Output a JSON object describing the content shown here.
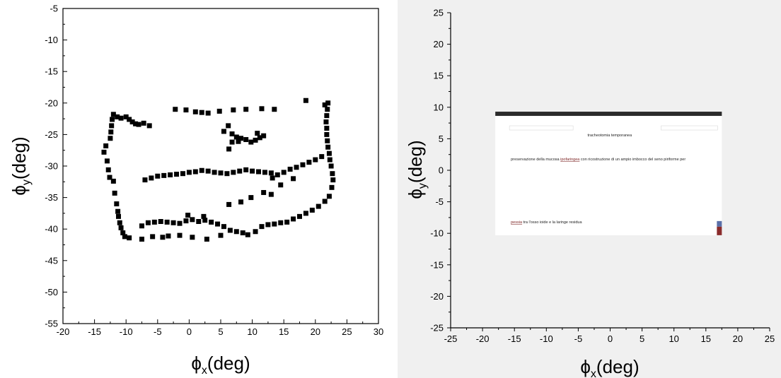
{
  "chart_data": [
    {
      "type": "scatter",
      "xlabel_base": "ϕ",
      "xlabel_sub": "x",
      "xlabel_unit": "(deg)",
      "ylabel_base": "ϕ",
      "ylabel_sub": "y",
      "ylabel_unit": "(deg)",
      "xlim": [
        -20,
        30
      ],
      "ylim": [
        -55,
        -5
      ],
      "xticks": [
        "-20",
        "-15",
        "-10",
        "-5",
        "0",
        "5",
        "10",
        "15",
        "20",
        "25",
        "30"
      ],
      "yticks": [
        "-5",
        "-10",
        "-15",
        "-20",
        "-25",
        "-30",
        "-35",
        "-40",
        "-45",
        "-50",
        "-55"
      ],
      "marker_color": "#000000",
      "points": [
        [
          -13.5,
          -27.8
        ],
        [
          -13.2,
          -26.8
        ],
        [
          -13.0,
          -29.2
        ],
        [
          -12.8,
          -30.6
        ],
        [
          -12.6,
          -31.8
        ],
        [
          -12.5,
          -25.6
        ],
        [
          -12.4,
          -24.6
        ],
        [
          -12.3,
          -23.6
        ],
        [
          -12.2,
          -22.6
        ],
        [
          -12.0,
          -21.8
        ],
        [
          -12.0,
          -32.4
        ],
        [
          -11.8,
          -34.3
        ],
        [
          -11.5,
          -36.0
        ],
        [
          -11.4,
          -22.2
        ],
        [
          -11.3,
          -37.2
        ],
        [
          -11.2,
          -38.0
        ],
        [
          -11.0,
          -39.0
        ],
        [
          -10.8,
          -39.8
        ],
        [
          -10.8,
          -22.4
        ],
        [
          -10.5,
          -40.6
        ],
        [
          -10.2,
          -41.2
        ],
        [
          -10.0,
          -22.2
        ],
        [
          -9.5,
          -41.4
        ],
        [
          -9.5,
          -22.6
        ],
        [
          -9.0,
          -23.0
        ],
        [
          -8.5,
          -23.3
        ],
        [
          -8.0,
          -23.4
        ],
        [
          -7.2,
          -23.2
        ],
        [
          -7.5,
          -41.6
        ],
        [
          -6.3,
          -23.6
        ],
        [
          -5.8,
          -41.2
        ],
        [
          -4.2,
          -41.3
        ],
        [
          -3.3,
          -41.1
        ],
        [
          -2.2,
          -21.0
        ],
        [
          -1.5,
          -41.0
        ],
        [
          -0.5,
          -21.1
        ],
        [
          0.5,
          -41.3
        ],
        [
          1.0,
          -21.4
        ],
        [
          2.0,
          -21.5
        ],
        [
          3.0,
          -21.6
        ],
        [
          2.8,
          -41.6
        ],
        [
          4.8,
          -21.3
        ],
        [
          5.0,
          -41.0
        ],
        [
          7.0,
          -21.1
        ],
        [
          9.0,
          -21.0
        ],
        [
          9.3,
          -40.9
        ],
        [
          10.5,
          -40.4
        ],
        [
          11.5,
          -20.9
        ],
        [
          13.5,
          -21.0
        ],
        [
          -7.0,
          -32.2
        ],
        [
          -6.0,
          -31.9
        ],
        [
          -5.0,
          -31.6
        ],
        [
          -4.0,
          -31.5
        ],
        [
          -3.0,
          -31.4
        ],
        [
          -2.0,
          -31.3
        ],
        [
          -1.0,
          -31.2
        ],
        [
          0.0,
          -31.0
        ],
        [
          1.0,
          -30.9
        ],
        [
          2.0,
          -30.7
        ],
        [
          3.0,
          -30.8
        ],
        [
          4.0,
          -31.0
        ],
        [
          5.0,
          -31.1
        ],
        [
          6.0,
          -31.2
        ],
        [
          7.0,
          -31.0
        ],
        [
          8.0,
          -30.8
        ],
        [
          9.0,
          -30.6
        ],
        [
          10.0,
          -30.8
        ],
        [
          11.0,
          -30.9
        ],
        [
          12.0,
          -31.0
        ],
        [
          13.0,
          -31.1
        ],
        [
          14.0,
          -31.4
        ],
        [
          15.0,
          -31.0
        ],
        [
          16.0,
          -30.5
        ],
        [
          17.0,
          -30.2
        ],
        [
          18.0,
          -29.8
        ],
        [
          19.0,
          -29.4
        ],
        [
          20.0,
          -29.0
        ],
        [
          21.0,
          -28.5
        ],
        [
          13.2,
          -31.9
        ],
        [
          16.5,
          -32.0
        ],
        [
          14.5,
          -33.0
        ],
        [
          13.0,
          -34.5
        ],
        [
          11.8,
          -34.2
        ],
        [
          9.8,
          -35.0
        ],
        [
          8.2,
          -35.7
        ],
        [
          6.3,
          -36.1
        ],
        [
          -7.5,
          -39.5
        ],
        [
          -6.5,
          -39.0
        ],
        [
          -5.5,
          -38.9
        ],
        [
          -4.5,
          -38.8
        ],
        [
          -3.5,
          -38.9
        ],
        [
          -2.5,
          -39.0
        ],
        [
          -1.5,
          -39.1
        ],
        [
          -0.5,
          -38.7
        ],
        [
          0.5,
          -38.5
        ],
        [
          1.5,
          -38.8
        ],
        [
          2.5,
          -38.6
        ],
        [
          3.5,
          -38.9
        ],
        [
          4.5,
          -39.2
        ],
        [
          5.5,
          -39.6
        ],
        [
          6.5,
          -40.2
        ],
        [
          7.5,
          -40.4
        ],
        [
          -0.2,
          -37.8
        ],
        [
          2.3,
          -38.0
        ],
        [
          8.5,
          -40.6
        ],
        [
          11.5,
          -39.6
        ],
        [
          12.5,
          -39.3
        ],
        [
          13.5,
          -39.2
        ],
        [
          14.5,
          -39.0
        ],
        [
          15.5,
          -38.9
        ],
        [
          16.5,
          -38.4
        ],
        [
          17.5,
          -38.0
        ],
        [
          18.5,
          -37.5
        ],
        [
          19.5,
          -37.0
        ],
        [
          20.5,
          -36.4
        ],
        [
          21.5,
          -35.6
        ],
        [
          22.2,
          -34.8
        ],
        [
          22.6,
          -33.4
        ],
        [
          22.8,
          -32.2
        ],
        [
          22.7,
          -31.2
        ],
        [
          22.5,
          -30.0
        ],
        [
          22.3,
          -29.0
        ],
        [
          22.2,
          -28.0
        ],
        [
          22.0,
          -27.0
        ],
        [
          21.9,
          -26.0
        ],
        [
          21.8,
          -25.0
        ],
        [
          21.8,
          -24.0
        ],
        [
          21.7,
          -23.0
        ],
        [
          21.8,
          -22.0
        ],
        [
          21.9,
          -21.0
        ],
        [
          22.0,
          -20.0
        ],
        [
          21.5,
          -20.3
        ],
        [
          18.5,
          -19.6
        ],
        [
          5.5,
          -24.5
        ],
        [
          6.2,
          -23.6
        ],
        [
          6.8,
          -24.9
        ],
        [
          7.5,
          -25.4
        ],
        [
          8.2,
          -25.6
        ],
        [
          9.0,
          -25.8
        ],
        [
          9.8,
          -26.2
        ],
        [
          10.5,
          -25.9
        ],
        [
          11.2,
          -25.5
        ],
        [
          11.8,
          -25.2
        ],
        [
          6.8,
          -26.2
        ],
        [
          6.3,
          -27.3
        ],
        [
          7.8,
          -26.1
        ],
        [
          10.8,
          -24.8
        ]
      ]
    },
    {
      "type": "scatter",
      "xlabel_base": "ϕ",
      "xlabel_sub": "x",
      "xlabel_unit": "(deg)",
      "ylabel_base": "ϕ",
      "ylabel_sub": "y",
      "ylabel_unit": "(deg)",
      "xlim": [
        -25,
        25
      ],
      "ylim": [
        -25,
        25
      ],
      "xticks": [
        "-25",
        "-20",
        "-15",
        "-10",
        "-5",
        "0",
        "5",
        "10",
        "15",
        "20",
        "25"
      ],
      "yticks": [
        "25",
        "20",
        "15",
        "10",
        "5",
        "0",
        "-5",
        "-10",
        "-15",
        "-20",
        "-25"
      ],
      "image_extent": [
        -18,
        17.5,
        -10.3,
        9.3
      ],
      "image_colors": {
        "bar": "#2b2b2b",
        "page": "#ffffff",
        "corner": "#8a2b2b",
        "corner_top": "#5a6fa8"
      },
      "document_text": {
        "line1": "tracheotomia temporanea",
        "line2_a": "preservazione della mucosa ",
        "line2_link": "ipofaringea",
        "line2_b": " con ricostruzione di un ampio imbocco del seno piriforme per",
        "line3_link": "pessia",
        "line3_b": " tra l'osso ioide e la laringe residua"
      }
    }
  ]
}
